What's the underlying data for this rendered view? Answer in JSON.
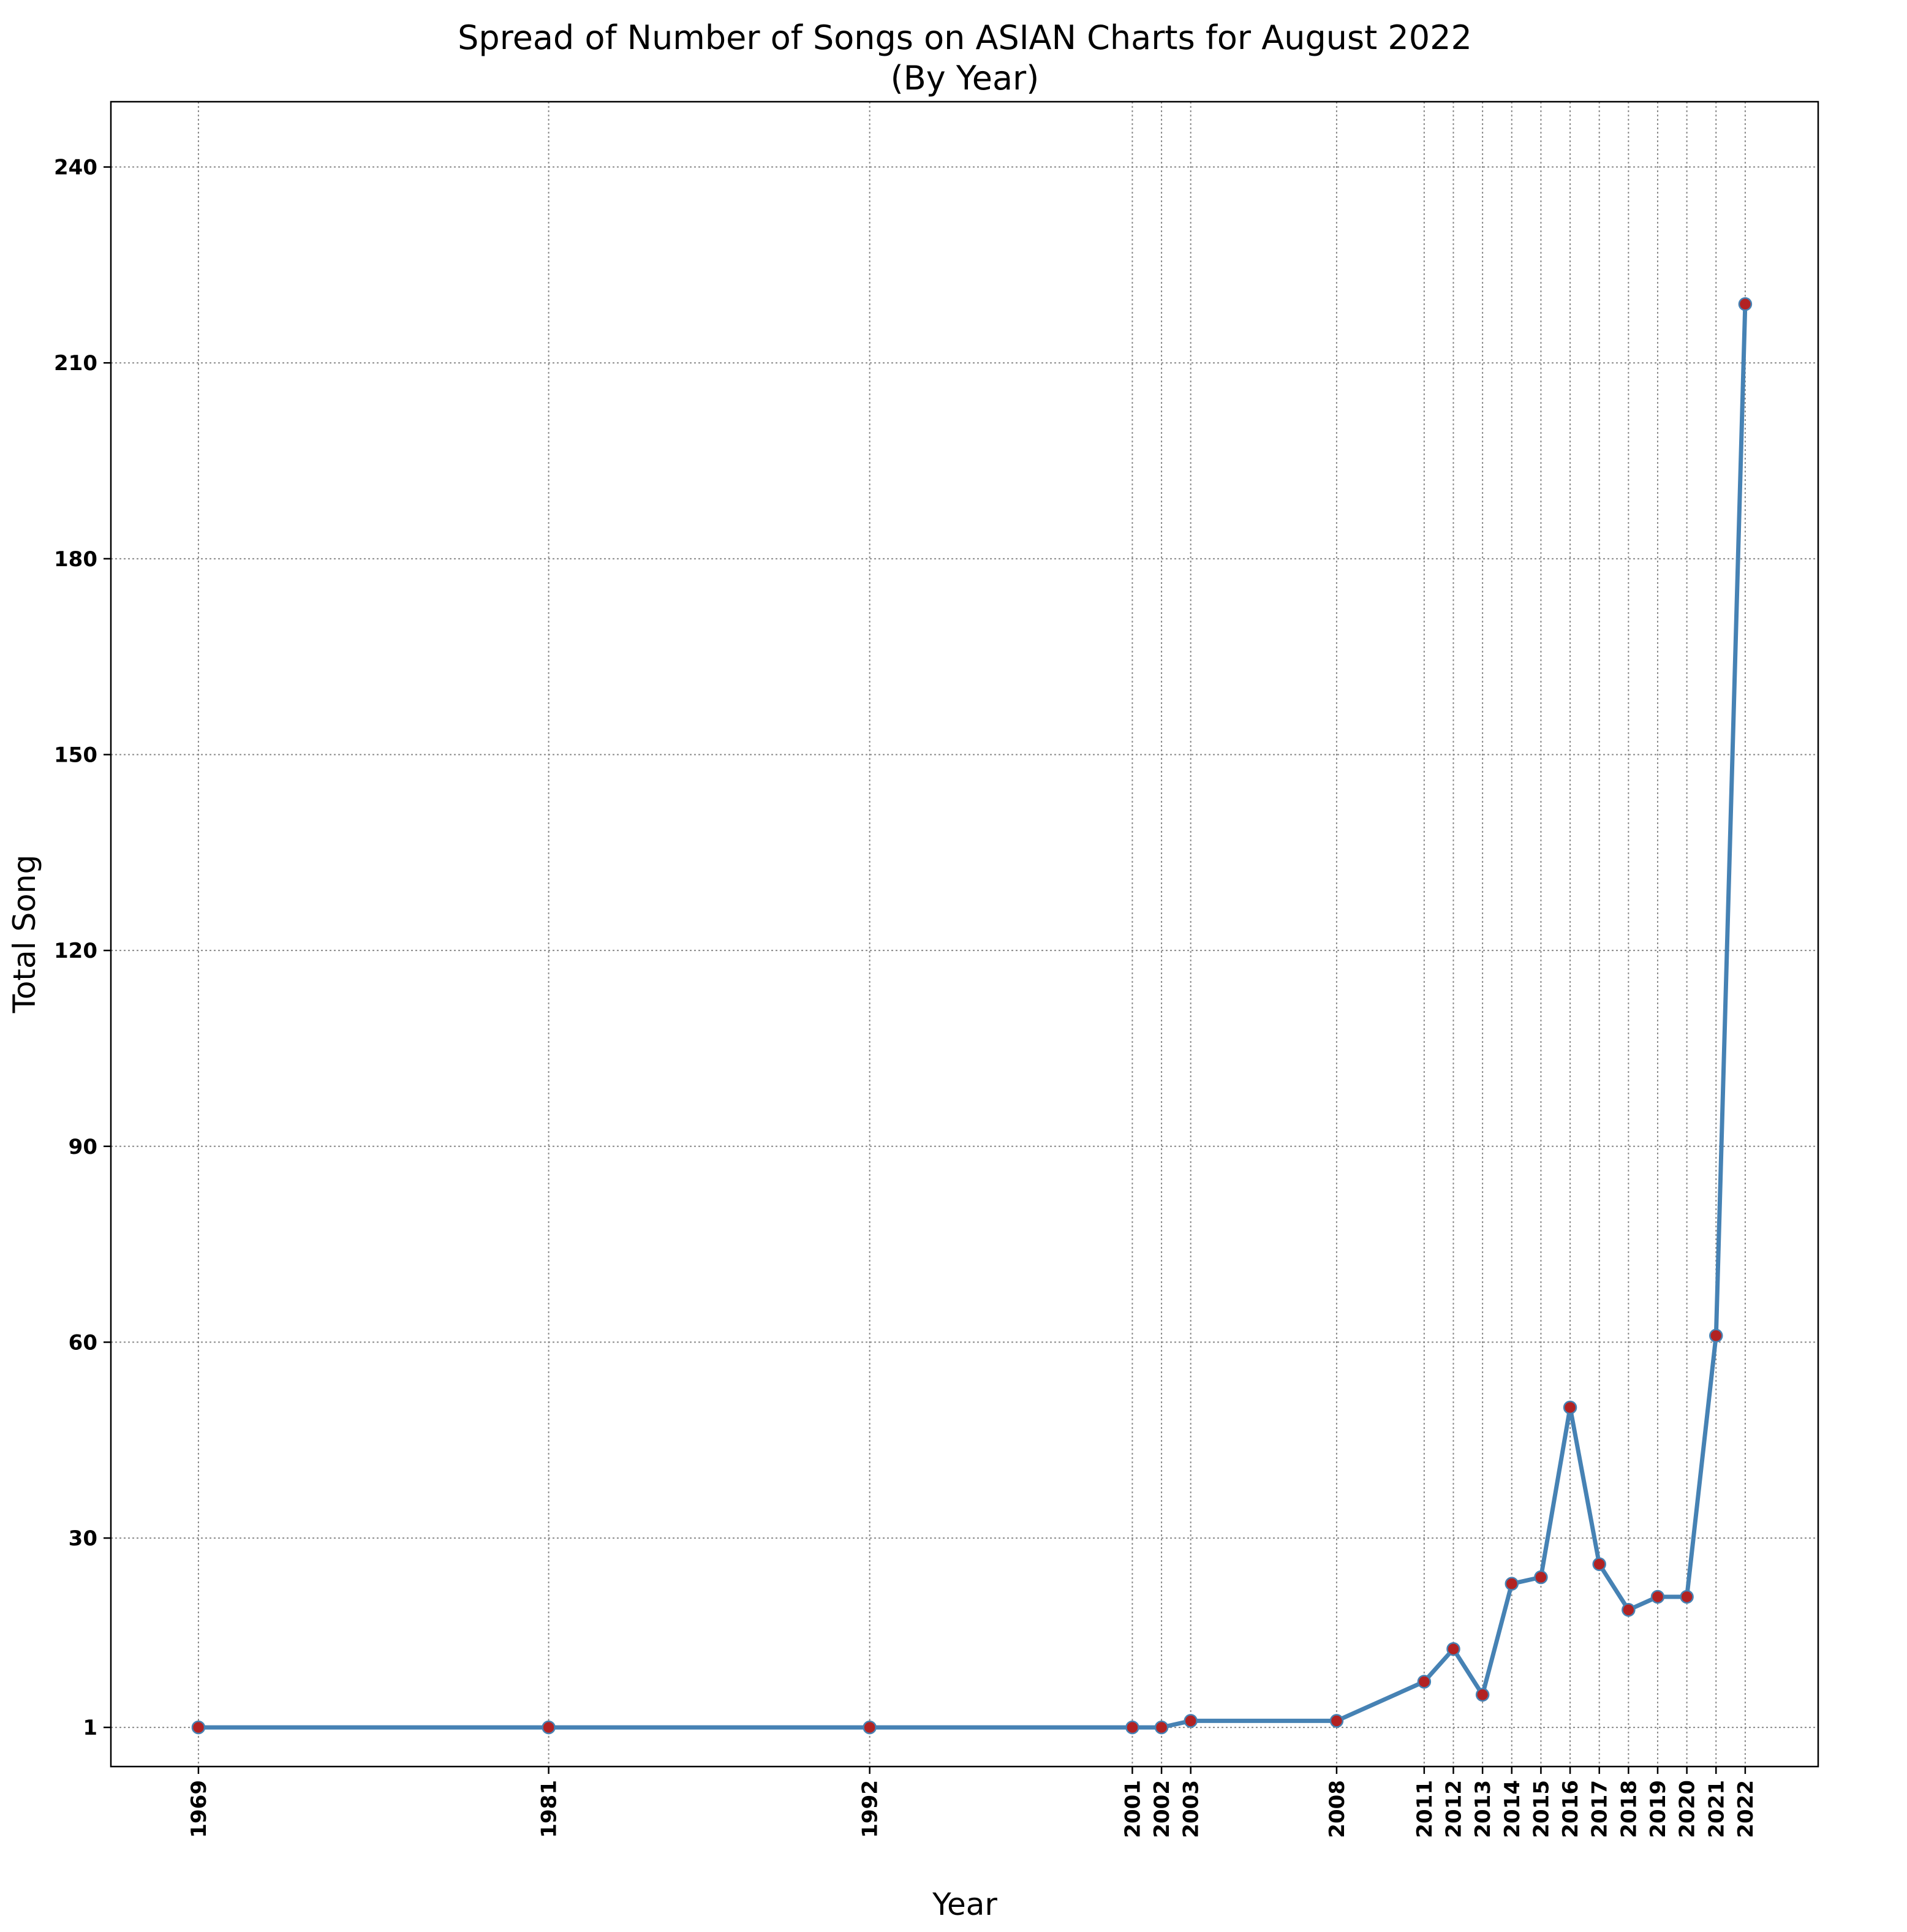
{
  "chart_data": {
    "type": "line",
    "title": "Spread of Number of Songs on ASIAN Charts for August 2022",
    "subtitle": "(By Year)",
    "xlabel": "Year",
    "ylabel": "Total Song",
    "x": [
      1969,
      1981,
      1992,
      2001,
      2002,
      2003,
      2008,
      2011,
      2012,
      2013,
      2014,
      2015,
      2016,
      2017,
      2018,
      2019,
      2020,
      2021,
      2022
    ],
    "x_tick_labels": [
      "1969",
      "1981",
      "1992",
      "2001",
      "2002",
      "2003",
      "2008",
      "2011",
      "2012",
      "2013",
      "2014",
      "2015",
      "2016",
      "2017",
      "2018",
      "2019",
      "2020",
      "2021",
      "2022"
    ],
    "series": [
      {
        "values": [
          1,
          1,
          1,
          1,
          1,
          2,
          2,
          8,
          13,
          6,
          23,
          24,
          50,
          26,
          19,
          21,
          21,
          61,
          219
        ]
      }
    ],
    "y_ticks": [
      1,
      30,
      60,
      90,
      120,
      150,
      180,
      210,
      240
    ],
    "y_tick_labels": [
      "1",
      "30",
      "60",
      "90",
      "120",
      "150",
      "180",
      "210",
      "240"
    ],
    "xlim": [
      1966,
      2024.5
    ],
    "ylim": [
      -5,
      250
    ],
    "grid": true,
    "colors": {
      "line": "#4682b4",
      "marker_fill": "#b22222",
      "marker_edge": "#4682b4"
    }
  }
}
